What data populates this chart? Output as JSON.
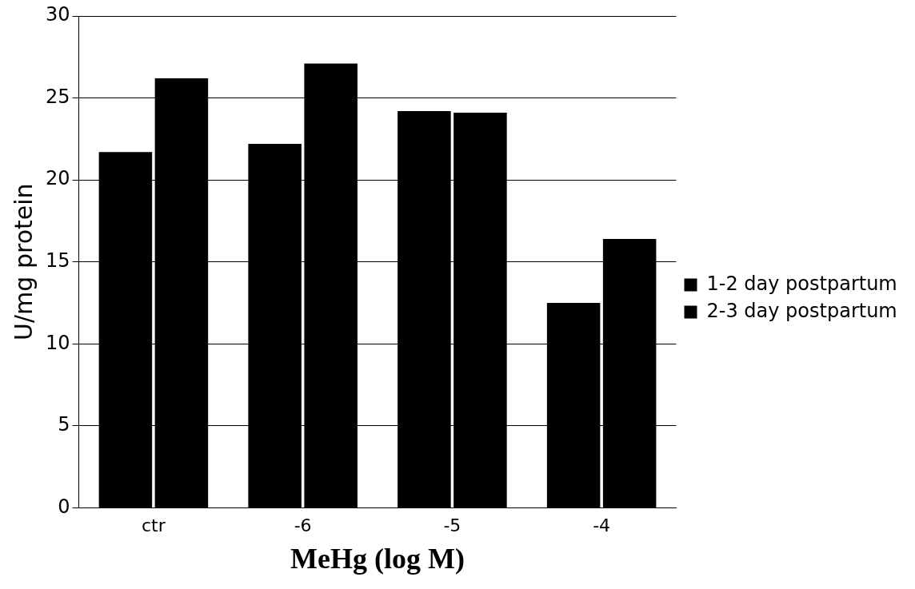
{
  "chart_data": {
    "type": "bar",
    "xlabel": "MeHg (log M)",
    "ylabel": "U/mg protein",
    "categories": [
      "ctr",
      "-6",
      "-5",
      "-4"
    ],
    "series": [
      {
        "name": "1-2 day postpartum",
        "color": "#000000",
        "values": [
          21.7,
          22.2,
          24.2,
          12.5
        ]
      },
      {
        "name": "2-3 day postpartum",
        "color": "#000000",
        "values": [
          26.2,
          27.1,
          24.1,
          16.4
        ]
      }
    ],
    "ylim": [
      0,
      30
    ],
    "yticks": [
      0,
      5,
      10,
      15,
      20,
      25,
      30
    ],
    "grid": "y",
    "legend": "right"
  }
}
